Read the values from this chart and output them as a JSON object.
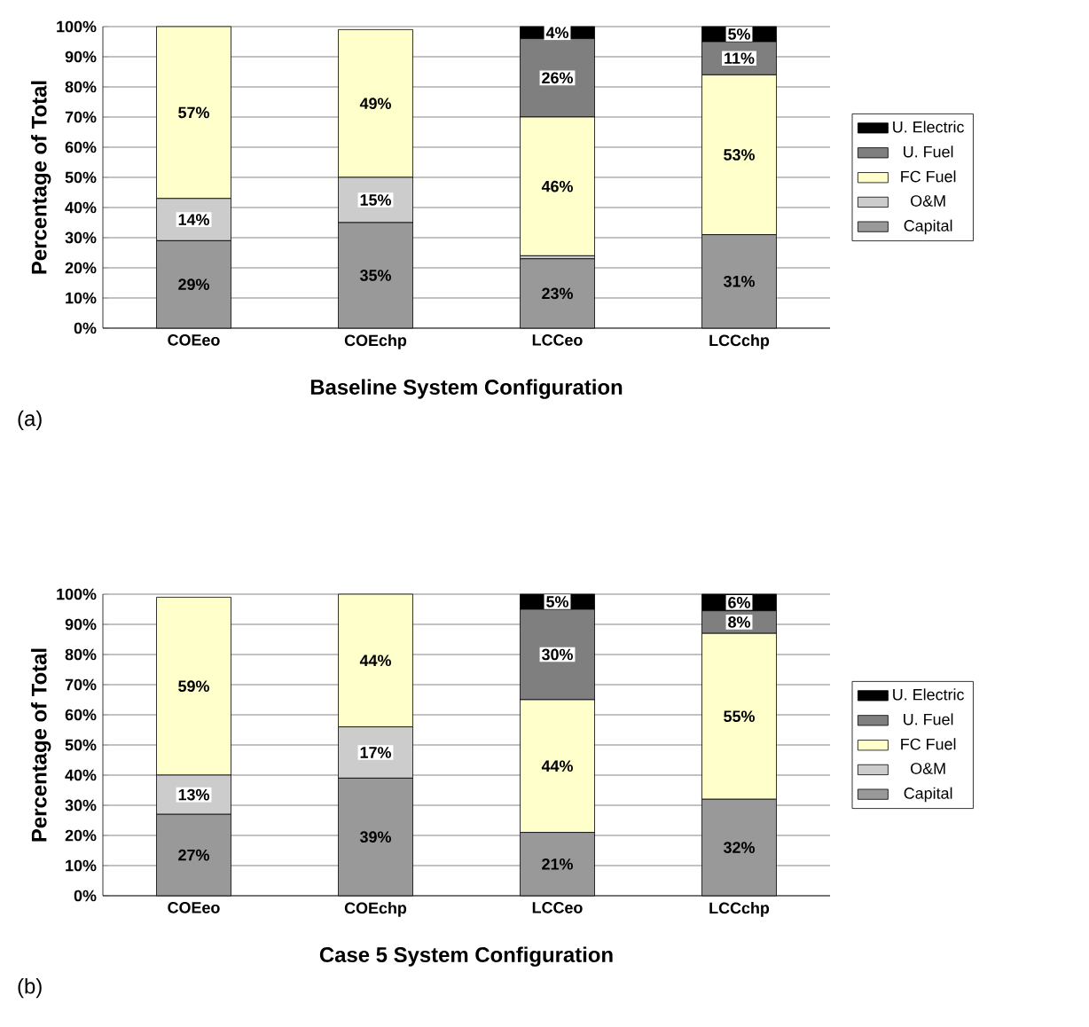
{
  "chart_data": [
    {
      "type": "bar",
      "stacked": true,
      "xlabel": "Baseline System Configuration",
      "ylabel": "Percentage of Total",
      "annotations": [
        "(a)"
      ],
      "categories": [
        "COEeo",
        "COEchp",
        "LCCeo",
        "LCCchp"
      ],
      "series": [
        {
          "name": "Capital",
          "color": "#999999",
          "values": [
            29,
            35,
            23,
            31
          ],
          "value_labels": [
            "29%",
            "35%",
            "23%",
            "31%"
          ]
        },
        {
          "name": "O&M",
          "color": "#cccccc",
          "values": [
            14,
            15,
            1,
            0
          ],
          "value_labels": [
            "14%",
            "15%",
            null,
            null
          ]
        },
        {
          "name": "FC Fuel",
          "color": "#ffffcc",
          "values": [
            57,
            49,
            46,
            53
          ],
          "value_labels": [
            "57%",
            "49%",
            "46%",
            "53%"
          ]
        },
        {
          "name": "U. Fuel",
          "color": "#7f7f7f",
          "values": [
            0,
            0,
            26,
            11
          ],
          "value_labels": [
            null,
            null,
            "26%",
            "11%"
          ]
        },
        {
          "name": "U. Electric",
          "color": "#000000",
          "values": [
            0,
            0,
            4,
            5
          ],
          "value_labels": [
            null,
            null,
            "4%",
            "5%"
          ]
        }
      ],
      "ylim": [
        0,
        100
      ],
      "yticks": [
        {
          "value": 0,
          "label": "0%"
        },
        {
          "value": 10,
          "label": "10%"
        },
        {
          "value": 20,
          "label": "20%"
        },
        {
          "value": 30,
          "label": "30%"
        },
        {
          "value": 40,
          "label": "40%"
        },
        {
          "value": 50,
          "label": "50%"
        },
        {
          "value": 60,
          "label": "60%"
        },
        {
          "value": 70,
          "label": "70%"
        },
        {
          "value": 80,
          "label": "80%"
        },
        {
          "value": 90,
          "label": "90%"
        },
        {
          "value": 100,
          "label": "100%"
        }
      ],
      "grid": "y",
      "legend": "right"
    },
    {
      "type": "bar",
      "stacked": true,
      "xlabel": "Case 5 System Configuration",
      "ylabel": "Percentage of Total",
      "annotations": [
        "(b)"
      ],
      "categories": [
        "COEeo",
        "COEchp",
        "LCCeo",
        "LCCchp"
      ],
      "series": [
        {
          "name": "Capital",
          "color": "#999999",
          "values": [
            27,
            39,
            21,
            32
          ],
          "value_labels": [
            "27%",
            "39%",
            "21%",
            "32%"
          ]
        },
        {
          "name": "O&M",
          "color": "#cccccc",
          "values": [
            13,
            17,
            0,
            0
          ],
          "value_labels": [
            "13%",
            "17%",
            null,
            null
          ]
        },
        {
          "name": "FC Fuel",
          "color": "#ffffcc",
          "values": [
            59,
            44,
            44,
            55
          ],
          "value_labels": [
            "59%",
            "44%",
            "44%",
            "55%"
          ]
        },
        {
          "name": "U. Fuel",
          "color": "#7f7f7f",
          "values": [
            0,
            0,
            30,
            7.5
          ],
          "value_labels": [
            null,
            null,
            "30%",
            "8%"
          ]
        },
        {
          "name": "U. Electric",
          "color": "#000000",
          "values": [
            0,
            0,
            5,
            5.5
          ],
          "value_labels": [
            null,
            null,
            "5%",
            "6%"
          ]
        }
      ],
      "ylim": [
        0,
        100
      ],
      "yticks": [
        {
          "value": 0,
          "label": "0%"
        },
        {
          "value": 10,
          "label": "10%"
        },
        {
          "value": 20,
          "label": "20%"
        },
        {
          "value": 30,
          "label": "30%"
        },
        {
          "value": 40,
          "label": "40%"
        },
        {
          "value": 50,
          "label": "50%"
        },
        {
          "value": 60,
          "label": "60%"
        },
        {
          "value": 70,
          "label": "70%"
        },
        {
          "value": 80,
          "label": "80%"
        },
        {
          "value": 90,
          "label": "90%"
        },
        {
          "value": 100,
          "label": "100%"
        }
      ],
      "grid": "y",
      "legend": "right"
    }
  ]
}
